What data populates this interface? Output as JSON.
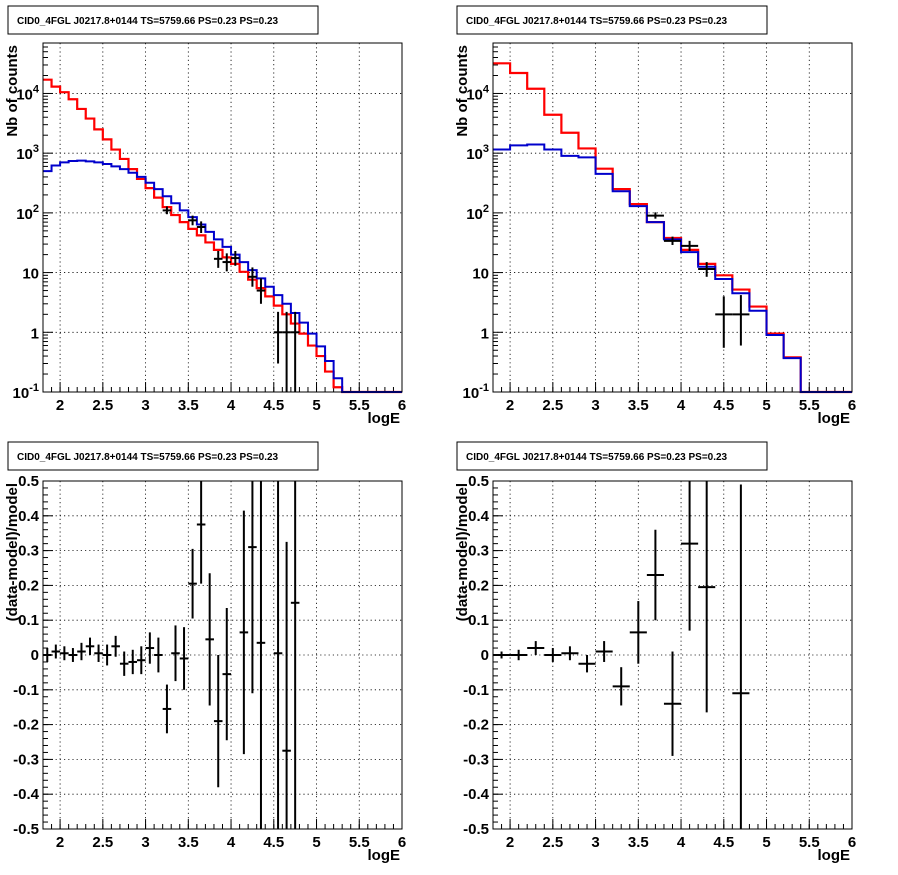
{
  "chart_data": [
    {
      "type": "line",
      "title": "CID0_4FGL J0217.8+0144 TS=5759.66 PS=0.23 PS=0.23",
      "xlabel": "logE",
      "ylabel": "Nb of counts",
      "xlim": [
        1.8,
        6
      ],
      "ylim": [
        0.1,
        70000
      ],
      "yscale": "log",
      "grid": true,
      "x_ticks": [
        "2",
        "2.5",
        "3",
        "3.5",
        "4",
        "4.5",
        "5",
        "5.5",
        "6"
      ],
      "y_ticks": [
        "10^-1",
        "1",
        "10",
        "10^2",
        "10^3",
        "10^4"
      ],
      "colors": {
        "total": "#ff0000",
        "source": "#0000cc",
        "data": "#000000"
      },
      "bin_edges": [
        1.8,
        1.9,
        2.0,
        2.1,
        2.2,
        2.3,
        2.4,
        2.5,
        2.6,
        2.7,
        2.8,
        2.9,
        3.0,
        3.1,
        3.2,
        3.3,
        3.4,
        3.5,
        3.6,
        3.7,
        3.8,
        3.9,
        4.0,
        4.1,
        4.2,
        4.3,
        4.4,
        4.5,
        4.6,
        4.7,
        4.8,
        4.9,
        5.0,
        5.1,
        5.2,
        5.3,
        5.4,
        5.5,
        5.6,
        5.7,
        5.8,
        5.9,
        6.0
      ],
      "series": [
        {
          "key": "total",
          "style": "step",
          "values": [
            17000,
            13000,
            10500,
            8000,
            5500,
            3800,
            2500,
            1700,
            1150,
            800,
            540,
            370,
            260,
            180,
            125,
            92,
            70,
            54,
            42,
            32,
            24,
            18,
            14,
            10.3,
            7.6,
            5.5,
            4,
            2.8,
            2,
            1.4,
            0.95,
            0.6,
            0.4,
            0.22,
            0.12,
            0.075,
            0.075,
            0.075,
            0.075,
            0.075,
            0.075,
            0.075
          ]
        },
        {
          "key": "source",
          "style": "step",
          "values": [
            500,
            620,
            700,
            740,
            750,
            730,
            700,
            660,
            600,
            540,
            470,
            400,
            320,
            250,
            190,
            145,
            110,
            85,
            64,
            48,
            36,
            27,
            20,
            15,
            11,
            8,
            5.8,
            4.2,
            3,
            2.1,
            1.45,
            0.95,
            0.58,
            0.33,
            0.17,
            0.09,
            0.075,
            0.075,
            0.075,
            0.075,
            0.075,
            0.075
          ]
        },
        {
          "key": "data",
          "style": "points",
          "points": [
            {
              "x": 3.25,
              "y": 110,
              "lo": 95,
              "hi": 128
            },
            {
              "x": 3.55,
              "y": 75,
              "lo": 62,
              "hi": 90
            },
            {
              "x": 3.65,
              "y": 58,
              "lo": 46,
              "hi": 72
            },
            {
              "x": 3.85,
              "y": 17,
              "lo": 12,
              "hi": 23
            },
            {
              "x": 3.95,
              "y": 15,
              "lo": 10.5,
              "hi": 21
            },
            {
              "x": 4.05,
              "y": 17.5,
              "lo": 13,
              "hi": 23
            },
            {
              "x": 4.25,
              "y": 8.5,
              "lo": 5.8,
              "hi": 12.2
            },
            {
              "x": 4.35,
              "y": 5,
              "lo": 3,
              "hi": 8
            },
            {
              "x": 4.55,
              "y": 1,
              "lo": 0.3,
              "hi": 2.2
            },
            {
              "x": 4.65,
              "y": 1,
              "lo": 0.1,
              "hi": 2.2
            },
            {
              "x": 4.75,
              "y": 1,
              "lo": 0.1,
              "hi": 2.2
            }
          ]
        }
      ]
    },
    {
      "type": "line",
      "title": "CID0_4FGL J0217.8+0144 TS=5759.66 PS=0.23 PS=0.23",
      "xlabel": "logE",
      "ylabel": "Nb of counts",
      "xlim": [
        1.8,
        6
      ],
      "ylim": [
        0.1,
        70000
      ],
      "yscale": "log",
      "grid": true,
      "x_ticks": [
        "2",
        "2.5",
        "3",
        "3.5",
        "4",
        "4.5",
        "5",
        "5.5",
        "6"
      ],
      "y_ticks": [
        "10^-1",
        "1",
        "10",
        "10^2",
        "10^3",
        "10^4"
      ],
      "colors": {
        "total": "#ff0000",
        "source": "#0000cc",
        "data": "#000000"
      },
      "bin_edges": [
        1.8,
        2.0,
        2.2,
        2.4,
        2.6,
        2.8,
        3.0,
        3.2,
        3.4,
        3.6,
        3.8,
        4.0,
        4.2,
        4.4,
        4.6,
        4.8,
        5.0,
        5.2,
        5.4,
        5.6,
        5.8,
        6.0
      ],
      "series": [
        {
          "key": "total",
          "style": "step",
          "values": [
            32000,
            22000,
            12000,
            4400,
            2200,
            1200,
            550,
            250,
            140,
            70,
            38,
            24,
            14,
            9,
            5.2,
            2.7,
            0.95,
            0.38,
            0.1,
            0.1,
            0.1
          ]
        },
        {
          "key": "source",
          "style": "step",
          "values": [
            1150,
            1350,
            1400,
            1150,
            900,
            850,
            450,
            230,
            130,
            70,
            36,
            22,
            12.5,
            7.8,
            4.5,
            2.3,
            0.9,
            0.37,
            0.1,
            0.1,
            0.1
          ]
        },
        {
          "key": "data",
          "style": "points",
          "points": [
            {
              "x": 3.7,
              "y": 90,
              "lo": 80,
              "hi": 102
            },
            {
              "x": 3.9,
              "y": 34,
              "lo": 29,
              "hi": 40
            },
            {
              "x": 4.1,
              "y": 28,
              "lo": 23,
              "hi": 34
            },
            {
              "x": 4.3,
              "y": 11.5,
              "lo": 8.5,
              "hi": 15
            },
            {
              "x": 4.5,
              "y": 2,
              "lo": 0.55,
              "hi": 4
            },
            {
              "x": 4.7,
              "y": 2,
              "lo": 0.6,
              "hi": 4.2
            }
          ]
        }
      ]
    },
    {
      "type": "scatter",
      "title": "CID0_4FGL J0217.8+0144 TS=5759.66 PS=0.23 PS=0.23",
      "xlabel": "logE",
      "ylabel": "(data-model)/model",
      "xlim": [
        1.8,
        6
      ],
      "ylim": [
        -0.5,
        0.5
      ],
      "grid": true,
      "x_ticks": [
        "2",
        "2.5",
        "3",
        "3.5",
        "4",
        "4.5",
        "5",
        "5.5",
        "6"
      ],
      "y_ticks": [
        "-0.5",
        "-0.4",
        "-0.3",
        "-0.2",
        "-0.1",
        "0",
        "0.1",
        "0.2",
        "0.3",
        "0.4",
        "0.5"
      ],
      "bin_width": 0.1,
      "series": [
        {
          "key": "residuals",
          "points": [
            {
              "x": 1.85,
              "y": 0.0,
              "err": 0.02
            },
            {
              "x": 1.95,
              "y": 0.01,
              "err": 0.02
            },
            {
              "x": 2.05,
              "y": 0.005,
              "err": 0.02
            },
            {
              "x": 2.15,
              "y": 0.0,
              "err": 0.02
            },
            {
              "x": 2.25,
              "y": 0.01,
              "err": 0.025
            },
            {
              "x": 2.35,
              "y": 0.025,
              "err": 0.025
            },
            {
              "x": 2.45,
              "y": 0.005,
              "err": 0.025
            },
            {
              "x": 2.55,
              "y": 0.0,
              "err": 0.03
            },
            {
              "x": 2.65,
              "y": 0.025,
              "err": 0.03
            },
            {
              "x": 2.75,
              "y": -0.025,
              "err": 0.035
            },
            {
              "x": 2.85,
              "y": -0.02,
              "err": 0.035
            },
            {
              "x": 2.95,
              "y": -0.015,
              "err": 0.04
            },
            {
              "x": 3.05,
              "y": 0.02,
              "err": 0.045
            },
            {
              "x": 3.15,
              "y": 0.0,
              "err": 0.05
            },
            {
              "x": 3.25,
              "y": -0.155,
              "err": 0.07
            },
            {
              "x": 3.35,
              "y": 0.005,
              "err": 0.08
            },
            {
              "x": 3.45,
              "y": -0.01,
              "err": 0.09
            },
            {
              "x": 3.55,
              "y": 0.205,
              "err": 0.1
            },
            {
              "x": 3.65,
              "y": 0.375,
              "err": 0.17
            },
            {
              "x": 3.75,
              "y": 0.045,
              "err": 0.19
            },
            {
              "x": 3.85,
              "y": -0.19,
              "err": 0.19
            },
            {
              "x": 3.95,
              "y": -0.055,
              "err": 0.19
            },
            {
              "x": 4.15,
              "y": 0.065,
              "err": 0.35
            },
            {
              "x": 4.25,
              "y": 0.31,
              "err": 0.42
            },
            {
              "x": 4.35,
              "y": 0.035,
              "err": 0.55
            },
            {
              "x": 4.55,
              "y": 0.005,
              "err": 0.6
            },
            {
              "x": 4.65,
              "y": -0.275,
              "err": 0.6
            },
            {
              "x": 4.75,
              "y": 0.15,
              "err": 0.65
            }
          ]
        }
      ]
    },
    {
      "type": "scatter",
      "title": "CID0_4FGL J0217.8+0144 TS=5759.66 PS=0.23 PS=0.23",
      "xlabel": "logE",
      "ylabel": "(data-model)/model",
      "xlim": [
        1.8,
        6
      ],
      "ylim": [
        -0.5,
        0.5
      ],
      "grid": true,
      "x_ticks": [
        "2",
        "2.5",
        "3",
        "3.5",
        "4",
        "4.5",
        "5",
        "5.5",
        "6"
      ],
      "y_ticks": [
        "-0.5",
        "-0.4",
        "-0.3",
        "-0.2",
        "-0.1",
        "0",
        "0.1",
        "0.2",
        "0.3",
        "0.4",
        "0.5"
      ],
      "bin_width": 0.2,
      "series": [
        {
          "key": "residuals",
          "points": [
            {
              "x": 1.9,
              "y": 0.0,
              "err": 0.01
            },
            {
              "x": 2.1,
              "y": 0.0,
              "err": 0.015
            },
            {
              "x": 2.3,
              "y": 0.02,
              "err": 0.02
            },
            {
              "x": 2.5,
              "y": 0.0,
              "err": 0.02
            },
            {
              "x": 2.7,
              "y": 0.005,
              "err": 0.02
            },
            {
              "x": 2.9,
              "y": -0.025,
              "err": 0.025
            },
            {
              "x": 3.1,
              "y": 0.01,
              "err": 0.03
            },
            {
              "x": 3.3,
              "y": -0.09,
              "err": 0.055
            },
            {
              "x": 3.5,
              "y": 0.065,
              "err": 0.09
            },
            {
              "x": 3.7,
              "y": 0.23,
              "err": 0.13
            },
            {
              "x": 3.9,
              "y": -0.14,
              "err": 0.15
            },
            {
              "x": 4.1,
              "y": 0.32,
              "err": 0.25
            },
            {
              "x": 4.3,
              "y": 0.195,
              "err": 0.36
            },
            {
              "x": 4.7,
              "y": -0.11,
              "err": 0.6
            }
          ]
        }
      ]
    }
  ]
}
